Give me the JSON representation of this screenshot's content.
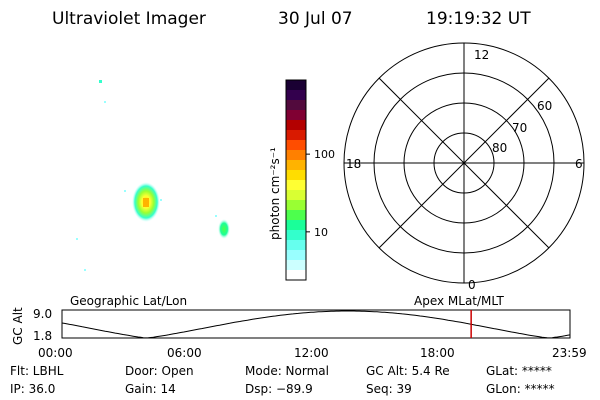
{
  "header": {
    "instrument": "Ultraviolet Imager",
    "date": "30 Jul 07",
    "time": "19:19:32 UT"
  },
  "colorbar": {
    "unit_label": "photon cm⁻²s⁻¹",
    "tick_labels": [
      "100",
      "10"
    ],
    "tick_values": [
      100,
      10
    ],
    "log_range": [
      2.4,
      900
    ],
    "colors": [
      "#1a0033",
      "#33004d",
      "#520a3d",
      "#800033",
      "#b30000",
      "#d91a00",
      "#ff4d00",
      "#ff8000",
      "#ffb300",
      "#ffdd00",
      "#ffff33",
      "#d9ff33",
      "#99ff33",
      "#4dff4d",
      "#1aff99",
      "#33ffcc",
      "#66ffee",
      "#99ffff",
      "#ccffff",
      "#ffffff"
    ]
  },
  "polar": {
    "mlt_labels": {
      "top": "12",
      "bottom": "0",
      "left": "18",
      "right": "6"
    },
    "lat_labels": [
      "60",
      "70",
      "80"
    ],
    "lat_values": [
      60,
      70,
      80
    ]
  },
  "orbit": {
    "y_axis_label": "GC Alt",
    "y_ticks": [
      "9.0",
      "1.8"
    ],
    "left_caption": "Geographic Lat/Lon",
    "right_caption": "Apex MLat/MLT",
    "x_ticks": [
      "00:00",
      "06:00",
      "12:00",
      "18:00",
      "23:59"
    ],
    "current_time_hours": 19.33,
    "marker_color": "#cc0000"
  },
  "info": {
    "filter": "Flt: LBHL",
    "door": "Door: Open",
    "mode": "Mode: Normal",
    "gc_alt": "GC Alt: 5.4 Re",
    "glat": "GLat: *****",
    "ip": "IP: 36.0",
    "gain": "Gain: 14",
    "dsp": "Dsp:  −89.9",
    "seq": "Seq: 39",
    "glon": "GLon: *****"
  }
}
